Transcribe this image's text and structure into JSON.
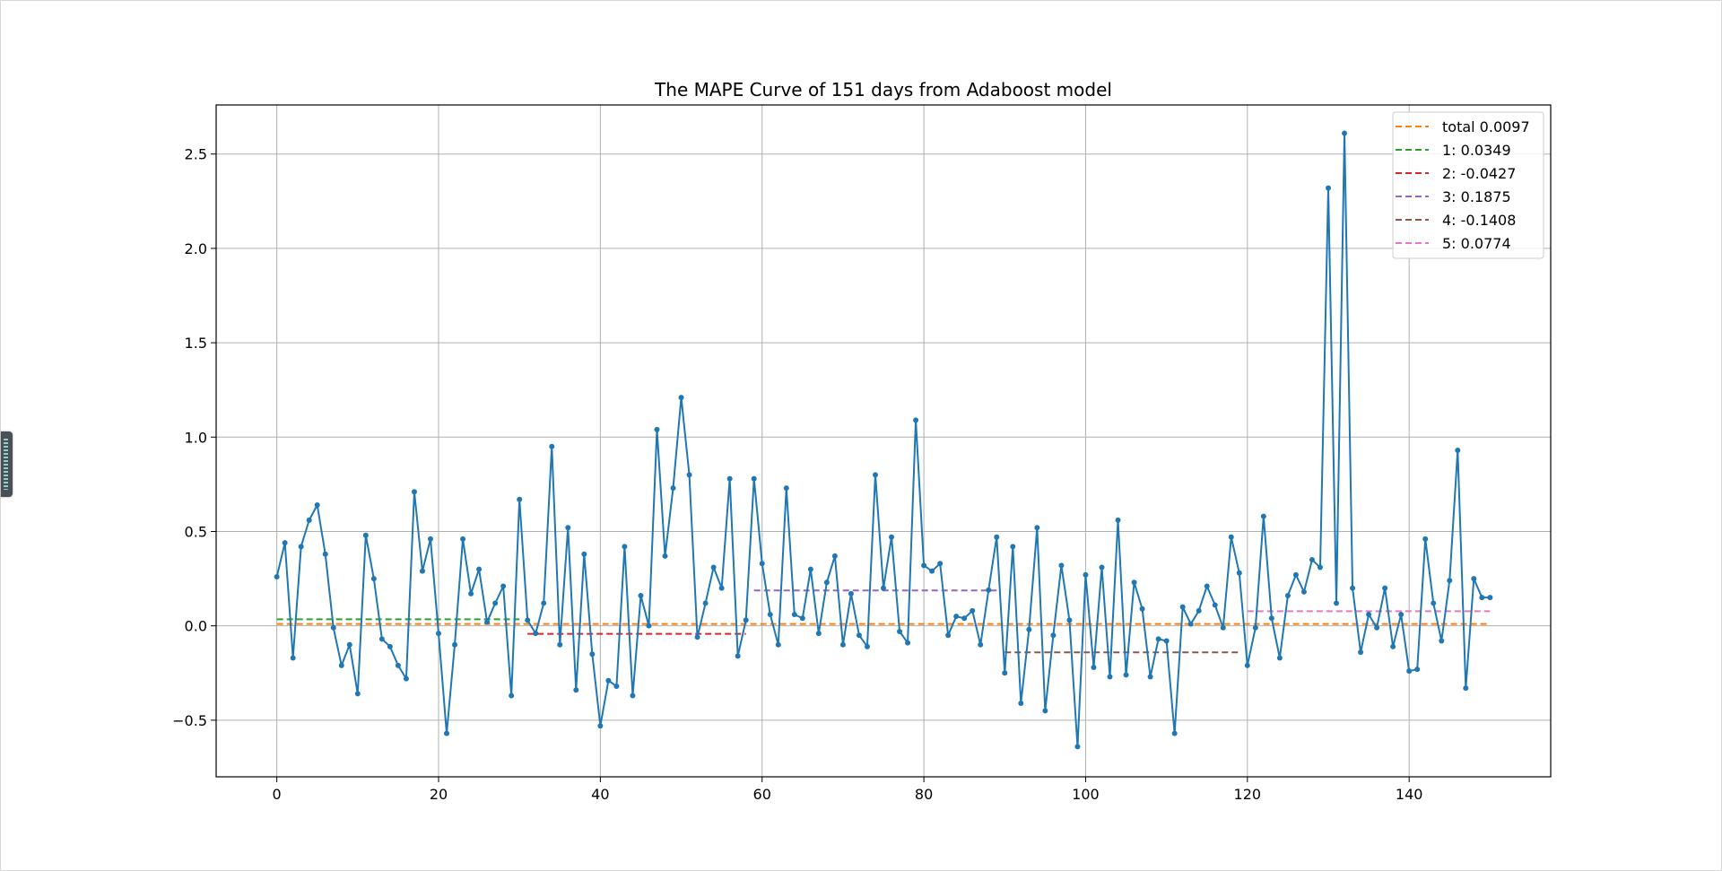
{
  "chart_data": {
    "type": "line",
    "title": "The MAPE Curve of 151 days from Adaboost model",
    "xlabel": "",
    "ylabel": "",
    "xlim": [
      -7.5,
      157.5
    ],
    "ylim": [
      -0.8,
      2.76
    ],
    "xticks": [
      0,
      20,
      40,
      60,
      80,
      100,
      120,
      140
    ],
    "yticks": [
      -0.5,
      0.0,
      0.5,
      1.0,
      1.5,
      2.0,
      2.5
    ],
    "xtick_labels": [
      "0",
      "20",
      "40",
      "60",
      "80",
      "100",
      "120",
      "140"
    ],
    "ytick_labels": [
      "−0.5",
      "0.0",
      "0.5",
      "1.0",
      "1.5",
      "2.0",
      "2.5"
    ],
    "grid": true,
    "legend_position": "top-right",
    "series": [
      {
        "color": "#1f77b4",
        "style": "solid-with-markers",
        "x_start": 0,
        "values": [
          0.26,
          0.44,
          -0.17,
          0.42,
          0.56,
          0.64,
          0.38,
          -0.01,
          -0.21,
          -0.1,
          -0.36,
          0.48,
          0.25,
          -0.07,
          -0.11,
          -0.21,
          -0.28,
          0.71,
          0.29,
          0.46,
          -0.04,
          -0.57,
          -0.1,
          0.46,
          0.17,
          0.3,
          0.02,
          0.12,
          0.21,
          -0.37,
          0.67,
          0.03,
          -0.04,
          0.12,
          0.95,
          -0.1,
          0.52,
          -0.34,
          0.38,
          -0.15,
          -0.53,
          -0.29,
          -0.32,
          0.42,
          -0.37,
          0.16,
          0.0,
          1.04,
          0.37,
          0.73,
          1.21,
          0.8,
          -0.06,
          0.12,
          0.31,
          0.2,
          0.78,
          -0.16,
          0.03,
          0.78,
          0.33,
          0.06,
          -0.1,
          0.73,
          0.06,
          0.04,
          0.3,
          -0.04,
          0.23,
          0.37,
          -0.1,
          0.17,
          -0.05,
          -0.11,
          0.8,
          0.2,
          0.47,
          -0.03,
          -0.09,
          1.09,
          0.32,
          0.29,
          0.33,
          -0.05,
          0.05,
          0.04,
          0.08,
          -0.1,
          0.19,
          0.47,
          -0.25,
          0.42,
          -0.41,
          -0.02,
          0.52,
          -0.45,
          -0.05,
          0.32,
          0.03,
          -0.64,
          0.27,
          -0.22,
          0.31,
          -0.27,
          0.56,
          -0.26,
          0.23,
          0.09,
          -0.27,
          -0.07,
          -0.08,
          -0.57,
          0.1,
          0.01,
          0.08,
          0.21,
          0.11,
          -0.01,
          0.47,
          0.28,
          -0.21,
          -0.01,
          0.58,
          0.04,
          -0.17,
          0.16,
          0.27,
          0.18,
          0.35,
          0.31,
          2.32,
          0.12,
          2.61,
          0.2,
          -0.14,
          0.06,
          -0.01,
          0.2,
          -0.11,
          0.06,
          -0.24,
          -0.23,
          0.46,
          0.12,
          -0.08,
          0.24,
          0.93,
          -0.33,
          0.25,
          0.15,
          0.15
        ]
      }
    ],
    "reference_lines": [
      {
        "label": "total 0.0097",
        "color": "#ff7f0e",
        "value": 0.0097,
        "x_from": 0,
        "x_to": 150
      },
      {
        "label": "1: 0.0349",
        "color": "#2ca02c",
        "value": 0.0349,
        "x_from": 0,
        "x_to": 30
      },
      {
        "label": "2: -0.0427",
        "color": "#d62728",
        "value": -0.0427,
        "x_from": 31,
        "x_to": 58
      },
      {
        "label": "3: 0.1875",
        "color": "#9467bd",
        "value": 0.1875,
        "x_from": 59,
        "x_to": 89
      },
      {
        "label": "4: -0.1408",
        "color": "#8c564b",
        "value": -0.1408,
        "x_from": 90,
        "x_to": 119
      },
      {
        "label": "5: 0.0774",
        "color": "#e377c2",
        "value": 0.0774,
        "x_from": 120,
        "x_to": 150
      }
    ]
  }
}
